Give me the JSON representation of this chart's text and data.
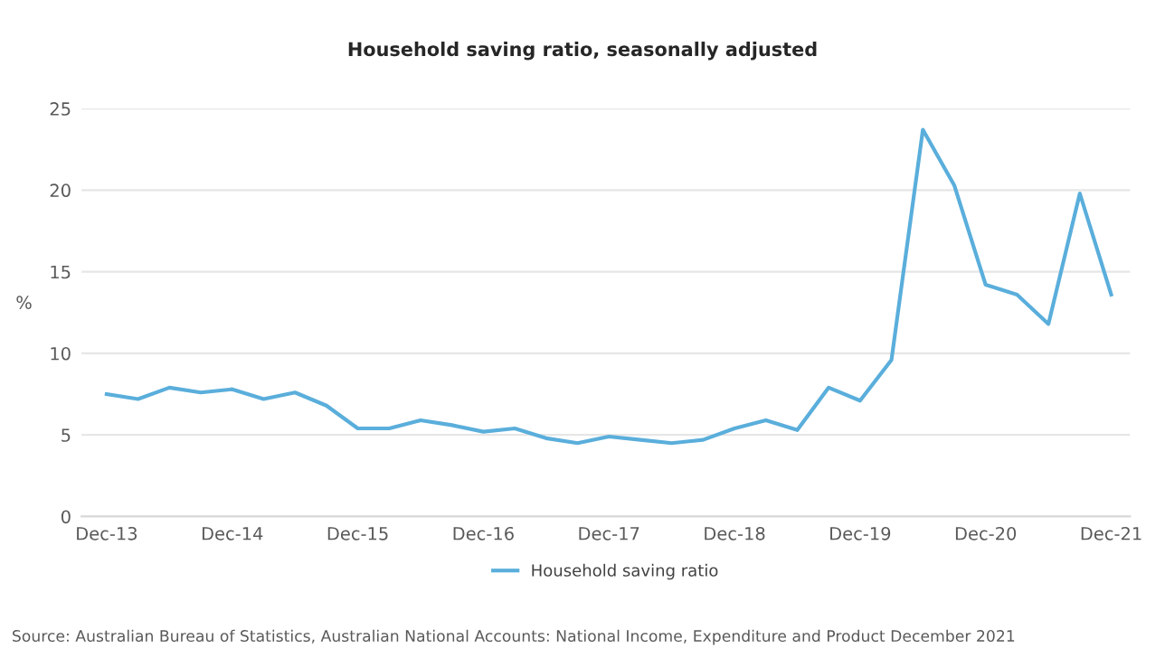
{
  "chart_data": {
    "type": "line",
    "title": "Household saving ratio, seasonally adjusted",
    "ylabel": "%",
    "categories": [
      "Dec-13",
      null,
      null,
      null,
      "Dec-14",
      null,
      null,
      null,
      "Dec-15",
      null,
      null,
      null,
      "Dec-16",
      null,
      null,
      null,
      "Dec-17",
      null,
      null,
      null,
      "Dec-18",
      null,
      null,
      null,
      "Dec-19",
      null,
      null,
      null,
      "Dec-20",
      null,
      null,
      null,
      "Dec-21"
    ],
    "series": [
      {
        "name": "Household saving ratio",
        "color": "#5aaedb",
        "values": [
          7.5,
          7.2,
          7.9,
          7.6,
          7.8,
          7.2,
          7.6,
          6.8,
          5.4,
          5.4,
          5.9,
          5.6,
          5.2,
          5.4,
          4.8,
          4.5,
          4.9,
          4.7,
          4.5,
          4.7,
          5.4,
          5.9,
          5.3,
          7.9,
          7.1,
          9.6,
          23.7,
          20.3,
          14.2,
          13.6,
          11.8,
          19.8,
          13.6
        ]
      }
    ],
    "ylim": [
      0,
      25
    ],
    "yticks": [
      0,
      5,
      10,
      15,
      20,
      25
    ],
    "grid": "y",
    "legend": "bottom",
    "annotations": [
      "Source: Australian Bureau of Statistics, Australian National Accounts: National Income, Expenditure and Product December 2021"
    ]
  }
}
